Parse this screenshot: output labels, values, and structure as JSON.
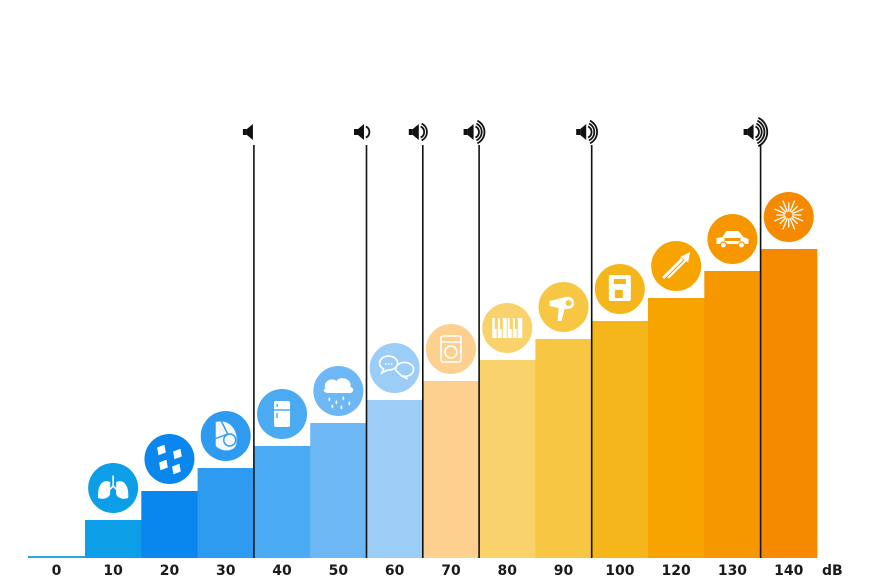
{
  "chart_data": {
    "type": "bar",
    "title": "",
    "xlabel": "",
    "ylabel": "",
    "unit_label": "dB",
    "categories": [
      "0",
      "10",
      "20",
      "30",
      "40",
      "50",
      "60",
      "70",
      "80",
      "90",
      "100",
      "120",
      "130",
      "140"
    ],
    "values": [
      0,
      10,
      20,
      30,
      40,
      50,
      60,
      70,
      80,
      90,
      100,
      120,
      130,
      140
    ],
    "colors": [
      "#29a8e0",
      "#0d9ee8",
      "#0a86ef",
      "#2e9bf0",
      "#4aaaf2",
      "#6db8f4",
      "#9ccdf7",
      "#fdd08f",
      "#f9d26c",
      "#f7c744",
      "#f5b61c",
      "#f7a300",
      "#f79700",
      "#f58a00"
    ],
    "icons": [
      "",
      "lungs-icon",
      "falling-leaves-icon",
      "whisper-icon",
      "refrigerator-icon",
      "rain-cloud-icon",
      "conversation-icon",
      "washing-machine-icon",
      "piano-keys-icon",
      "hair-dryer-icon",
      "coffee-machine-icon",
      "trombone-icon",
      "police-car-icon",
      "fireworks-icon"
    ],
    "threshold_markers": [
      {
        "after": "30",
        "icon": "speaker-1-wave-icon",
        "waves": 0
      },
      {
        "after": "50",
        "icon": "speaker-1-wave-icon",
        "waves": 1
      },
      {
        "after": "60",
        "icon": "speaker-2-waves-icon",
        "waves": 2
      },
      {
        "after": "70",
        "icon": "speaker-3-waves-icon",
        "waves": 3
      },
      {
        "after": "90",
        "icon": "speaker-3-waves-icon",
        "waves": 3
      },
      {
        "after": "130",
        "icon": "speaker-4-waves-icon",
        "waves": 4
      }
    ],
    "legend": "none",
    "grid": false
  }
}
